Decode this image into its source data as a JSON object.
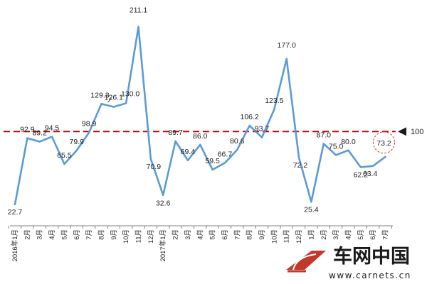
{
  "chart_data": {
    "type": "line",
    "title": "",
    "xlabel": "",
    "ylabel": "",
    "ylim": [
      0,
      220
    ],
    "grid": false,
    "reference_line": {
      "value": 100,
      "label": "100",
      "color": "#c00000",
      "style": "dashed"
    },
    "series": [
      {
        "color": "#5b9bd5",
        "values": [
          22.7,
          92.9,
          89.2,
          94.5,
          65.5,
          79.9,
          98.9,
          129.3,
          126.1,
          130.0,
          211.1,
          70.9,
          32.6,
          89.7,
          69.4,
          86.0,
          59.5,
          66.7,
          80.6,
          106.2,
          93.7,
          123.5,
          177.0,
          72.2,
          25.4,
          87.0,
          75.0,
          80.0,
          62.2,
          63.4,
          73.2
        ]
      }
    ],
    "x": [
      "2016年1月",
      "2月",
      "3月",
      "4月",
      "5月",
      "6月",
      "7月",
      "8月",
      "9月",
      "10月",
      "11月",
      "12月",
      "2017年1月",
      "2月",
      "3月",
      "4月",
      "5月",
      "6月",
      "7月",
      "8月",
      "9月",
      "10月",
      "11月",
      "12月",
      "1月",
      "2月",
      "3月",
      "4月",
      "5月",
      "6月",
      "7月"
    ],
    "data_labels": [
      "22.7",
      "92.9",
      "89.2",
      "94.5",
      "65.5",
      "79.9",
      "98.9",
      "129.3",
      "126.1",
      "130.0",
      "211.1",
      "70.9",
      "32.6",
      "89.7",
      "69.4",
      "86.0",
      "59.5",
      "66.7",
      "80.6",
      "106.2",
      "93.7",
      "123.5",
      "177.0",
      "72.2",
      "25.4",
      "87.0",
      "75.0",
      "80.0",
      "62.2",
      "63.4",
      "73.2"
    ],
    "highlighted_point": {
      "index": 30,
      "marker": "dashed-circle",
      "color": "#e03030"
    }
  },
  "watermark": {
    "text": "车网中国",
    "url": "www.carnets.cn"
  }
}
